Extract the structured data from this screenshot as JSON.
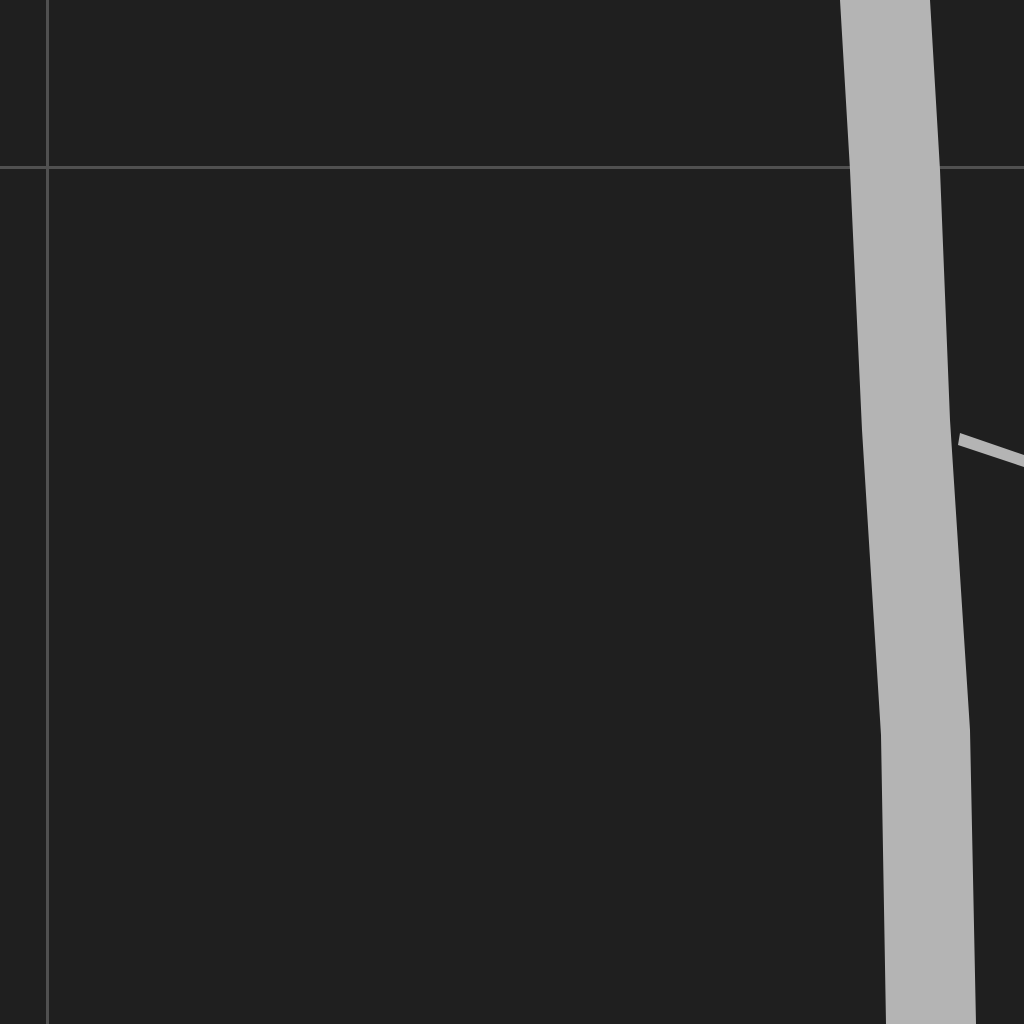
{
  "canvas": {
    "background_color": "#1f1f1f",
    "guide_color": "#505050",
    "stroke_color": "#b4b4b4"
  }
}
